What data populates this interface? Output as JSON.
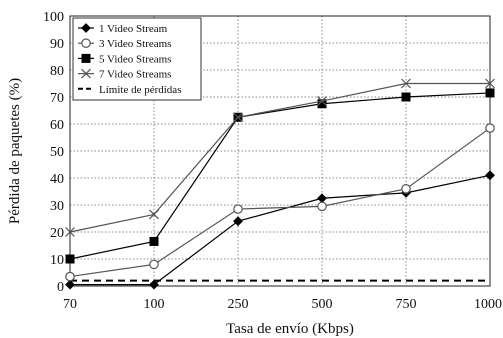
{
  "chart_data": {
    "type": "line",
    "xlabel": "Tasa de envío (Kbps)",
    "ylabel": "Pérdida de paquetes (%)",
    "categories": [
      "70",
      "100",
      "250",
      "500",
      "750",
      "1000"
    ],
    "ylim": [
      0,
      100
    ],
    "yticks": [
      0,
      10,
      20,
      30,
      40,
      50,
      60,
      70,
      80,
      90,
      100
    ],
    "grid": "dotted",
    "legend_position": "top-left",
    "series": [
      {
        "name": "1 Video Stream",
        "marker": "diamond",
        "color": "#000000",
        "values": [
          0.5,
          0.5,
          24,
          32.5,
          34.5,
          41
        ]
      },
      {
        "name": "3 Video Streams",
        "marker": "circle-open",
        "color": "#555555",
        "values": [
          3.5,
          8,
          28.5,
          29.5,
          36,
          58.5
        ]
      },
      {
        "name": "5 Video Streams",
        "marker": "square",
        "color": "#000000",
        "values": [
          10,
          16.5,
          62.5,
          67.5,
          70,
          71.5
        ]
      },
      {
        "name": "7 Video Streams",
        "marker": "x",
        "color": "#555555",
        "values": [
          20,
          26.5,
          62.5,
          68.5,
          75,
          75
        ]
      }
    ],
    "threshold": {
      "name": "Límite de pérdidas",
      "value": 2,
      "style": "dashed",
      "color": "#000000"
    }
  }
}
